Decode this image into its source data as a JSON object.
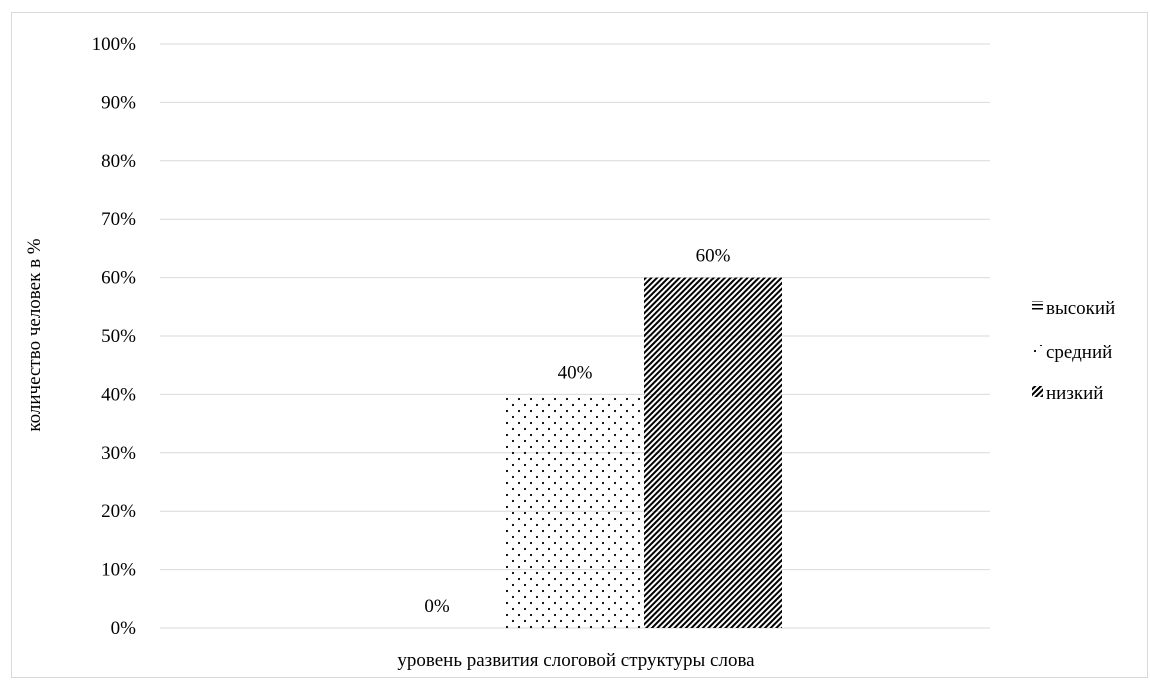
{
  "chart_data": {
    "type": "bar",
    "title": "",
    "xlabel": "уровень развития слоговой структуры слова",
    "ylabel": "количество человек в %",
    "ylim": [
      0,
      100
    ],
    "y_ticks": [
      "0%",
      "10%",
      "20%",
      "30%",
      "40%",
      "50%",
      "60%",
      "70%",
      "80%",
      "90%",
      "100%"
    ],
    "grid": true,
    "legend_position": "right",
    "series": [
      {
        "name": "высокий",
        "values": [
          0
        ],
        "data_label": "0%",
        "pattern": "horizontal-lines"
      },
      {
        "name": "средний",
        "values": [
          40
        ],
        "data_label": "40%",
        "pattern": "dots"
      },
      {
        "name": "низкий",
        "values": [
          60
        ],
        "data_label": "60%",
        "pattern": "diagonal-lines"
      }
    ]
  }
}
